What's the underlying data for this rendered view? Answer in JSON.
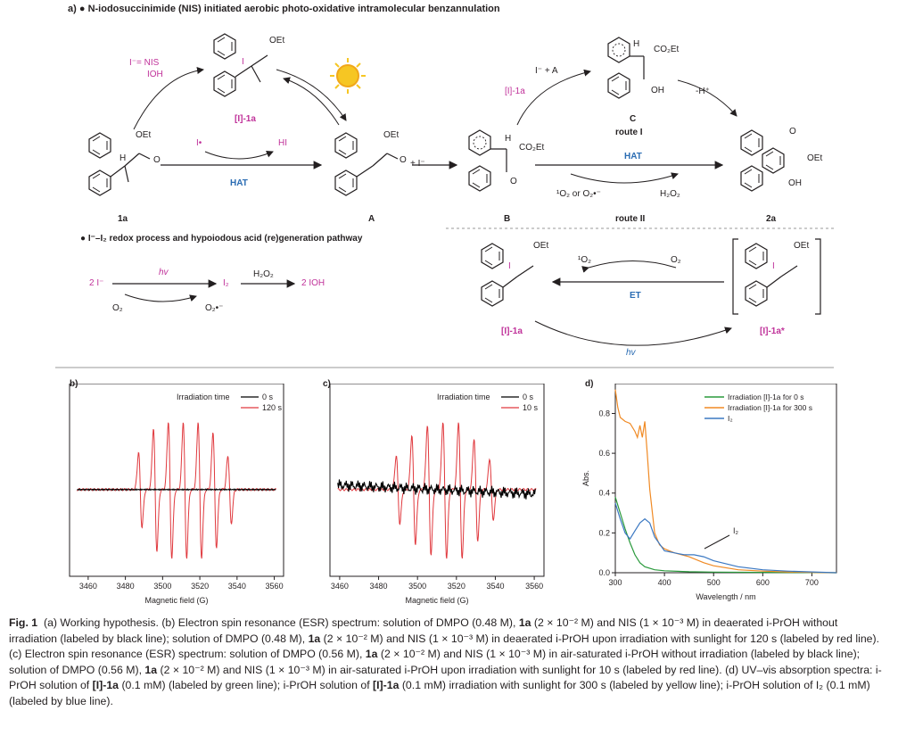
{
  "scheme": {
    "section_a_label": "a)",
    "section_a_title": "N-iodosuccinimide (NIS) initiated aerobic photo-oxidative intramolecular benzannulation",
    "section_b_title": "I⁻–I₂ redox process and hypoiodous acid (re)generation pathway",
    "reagent_top_1": "I⁻= NIS",
    "reagent_top_2": "IOH",
    "label_1a": "1a",
    "label_I1a": "[I]-1a",
    "label_A": "A",
    "label_B": "B",
    "label_C": "C",
    "label_2a": "2a",
    "label_I1a_star": "[I]-1a*",
    "i_radical": "I•",
    "hi": "HI",
    "hat_left": "HAT",
    "plus_i": "+ I⁻",
    "i_plus_A": "I⁻ + A",
    "i1a_top": "[I]-1a",
    "route_I": "route I",
    "route_II": "route II",
    "minus_h": "-H⁺",
    "hat_right": "HAT",
    "o2_left": "¹O₂ or O₂•⁻",
    "h2o2_right": "H₂O₂",
    "redox_2i": "2 I⁻",
    "redox_hv": "hv",
    "redox_i2": "I₂",
    "redox_h2o2": "H₂O₂",
    "redox_2ioh": "2 IOH",
    "redox_o2": "O₂",
    "redox_o2rad": "O₂•⁻",
    "singlet_o2": "¹O₂",
    "o2_right": "O₂",
    "et": "ET",
    "hv_bottom": "hv",
    "oet": "OEt",
    "co2et": "CO₂Et",
    "oh": "OH",
    "h": "H",
    "o": "O",
    "i_atom": "I"
  },
  "panel_b": {
    "letter": "b)",
    "legend_title": "Irradiation time",
    "legend_items": [
      "0 s",
      "120 s"
    ],
    "xlabel": "Magnetic field (G)",
    "xticks": [
      "3460",
      "3480",
      "3500",
      "3520",
      "3540",
      "3560"
    ]
  },
  "panel_c": {
    "letter": "c)",
    "legend_title": "Irradiation time",
    "legend_items": [
      "0 s",
      "10 s"
    ],
    "xlabel": "Magnetic field (G)",
    "xticks": [
      "3460",
      "3480",
      "3500",
      "3520",
      "3540",
      "3560"
    ]
  },
  "panel_d": {
    "letter": "d)",
    "legend_items": [
      "Irradiation [I]-1a for 0 s",
      "Irradiation [I]-1a for 300 s",
      "I₂"
    ],
    "annotation": "I₂",
    "ylabel": "Abs.",
    "xlabel": "Wavelength / nm",
    "xticks": [
      "300",
      "400",
      "500",
      "600",
      "700"
    ],
    "yticks": [
      "0.0",
      "0.2",
      "0.4",
      "0.6",
      "0.8"
    ]
  },
  "chart_data": [
    {
      "type": "line",
      "xlabel": "Magnetic field (G)",
      "ylabel": "",
      "xlim": [
        3450,
        3565
      ],
      "legend_title": "Irradiation time",
      "series": [
        {
          "name": "0 s",
          "color": "#000000",
          "x": [
            3455,
            3470,
            3485,
            3500,
            3515,
            3530,
            3545,
            3560
          ],
          "y": [
            0,
            0,
            0,
            0,
            0,
            0,
            0,
            0
          ]
        },
        {
          "name": "120 s",
          "color": "#e0393e",
          "peaks_G": [
            3488,
            3496,
            3504,
            3512,
            3520,
            3528,
            3536
          ],
          "amplitude": [
            0.55,
            0.9,
            1.0,
            1.0,
            1.0,
            0.85,
            0.5
          ]
        }
      ]
    },
    {
      "type": "line",
      "xlabel": "Magnetic field (G)",
      "ylabel": "",
      "xlim": [
        3455,
        3565
      ],
      "legend_title": "Irradiation time",
      "series": [
        {
          "name": "0 s",
          "color": "#000000",
          "x": [
            3458,
            3480,
            3500,
            3520,
            3540,
            3560
          ],
          "y": [
            0.05,
            0.05,
            0,
            0,
            -0.05,
            -0.05
          ]
        },
        {
          "name": "10 s",
          "color": "#e0393e",
          "peaks_G": [
            3490,
            3498,
            3506,
            3514,
            3522,
            3530,
            3538
          ],
          "amplitude": [
            0.5,
            0.8,
            0.95,
            1.0,
            1.0,
            0.75,
            0.45
          ]
        }
      ]
    },
    {
      "type": "line",
      "xlabel": "Wavelength / nm",
      "ylabel": "Abs.",
      "xlim": [
        300,
        750
      ],
      "ylim": [
        0,
        0.95
      ],
      "series": [
        {
          "name": "Irradiation [I]-1a for 0 s",
          "color": "#2a9a3c",
          "x": [
            300,
            310,
            320,
            330,
            340,
            350,
            360,
            380,
            400,
            450,
            500,
            600,
            750
          ],
          "y": [
            0.38,
            0.3,
            0.22,
            0.15,
            0.09,
            0.05,
            0.03,
            0.015,
            0.01,
            0.005,
            0.003,
            0.002,
            0.0
          ]
        },
        {
          "name": "Irradiation [I]-1a for 300 s",
          "color": "#f08a24",
          "x": [
            300,
            305,
            310,
            320,
            330,
            340,
            345,
            350,
            355,
            360,
            365,
            370,
            380,
            390,
            400,
            420,
            450,
            480,
            500,
            550,
            600,
            650,
            700,
            750
          ],
          "y": [
            0.92,
            0.83,
            0.78,
            0.76,
            0.75,
            0.71,
            0.68,
            0.74,
            0.68,
            0.76,
            0.6,
            0.42,
            0.2,
            0.14,
            0.12,
            0.1,
            0.08,
            0.05,
            0.035,
            0.015,
            0.008,
            0.004,
            0.002,
            0.0
          ]
        },
        {
          "name": "I₂",
          "color": "#3b78c2",
          "x": [
            300,
            310,
            320,
            330,
            340,
            350,
            360,
            370,
            380,
            400,
            420,
            440,
            460,
            480,
            500,
            550,
            600,
            650,
            700,
            750
          ],
          "y": [
            0.35,
            0.27,
            0.2,
            0.17,
            0.21,
            0.25,
            0.27,
            0.25,
            0.18,
            0.11,
            0.1,
            0.09,
            0.09,
            0.08,
            0.06,
            0.03,
            0.015,
            0.008,
            0.004,
            0.0
          ]
        }
      ]
    }
  ],
  "caption": {
    "fig_label": "Fig. 1",
    "segments": [
      {
        "t": "(a) Working hypothesis. (b) Electron spin resonance (ESR) spectrum: solution of DMPO (0.48 M), "
      },
      {
        "t": "1a",
        "b": true
      },
      {
        "t": " (2 × 10⁻² M) and NIS (1 × 10⁻³ M) in deaerated i-PrOH without irradiation (labeled by black line); solution of DMPO (0.48 M), "
      },
      {
        "t": "1a",
        "b": true
      },
      {
        "t": " (2 × 10⁻² M) and NIS (1 × 10⁻³ M) in deaerated i-PrOH upon irradiation with sunlight for 120 s (labeled by red line). (c) Electron spin resonance (ESR) spectrum: solution of DMPO (0.56 M), "
      },
      {
        "t": "1a",
        "b": true
      },
      {
        "t": " (2 × 10⁻² M) and NIS (1 × 10⁻³ M) in air-saturated i-PrOH without irradiation (labeled by black line); solution of DMPO (0.56 M), "
      },
      {
        "t": "1a",
        "b": true
      },
      {
        "t": " (2 × 10⁻² M) and NIS (1 × 10⁻³ M) in air-saturated i-PrOH upon irradiation with sunlight for 10 s (labeled by red line). (d) UV–vis absorption spectra: i-PrOH solution of "
      },
      {
        "t": "[I]-1a",
        "b": true
      },
      {
        "t": " (0.1 mM) (labeled by green line); i-PrOH solution of "
      },
      {
        "t": "[I]-1a",
        "b": true
      },
      {
        "t": " (0.1 mM) irradiation with sunlight for 300 s (labeled by yellow line); i-PrOH solution of I₂ (0.1 mM) (labeled by blue line)."
      }
    ]
  }
}
